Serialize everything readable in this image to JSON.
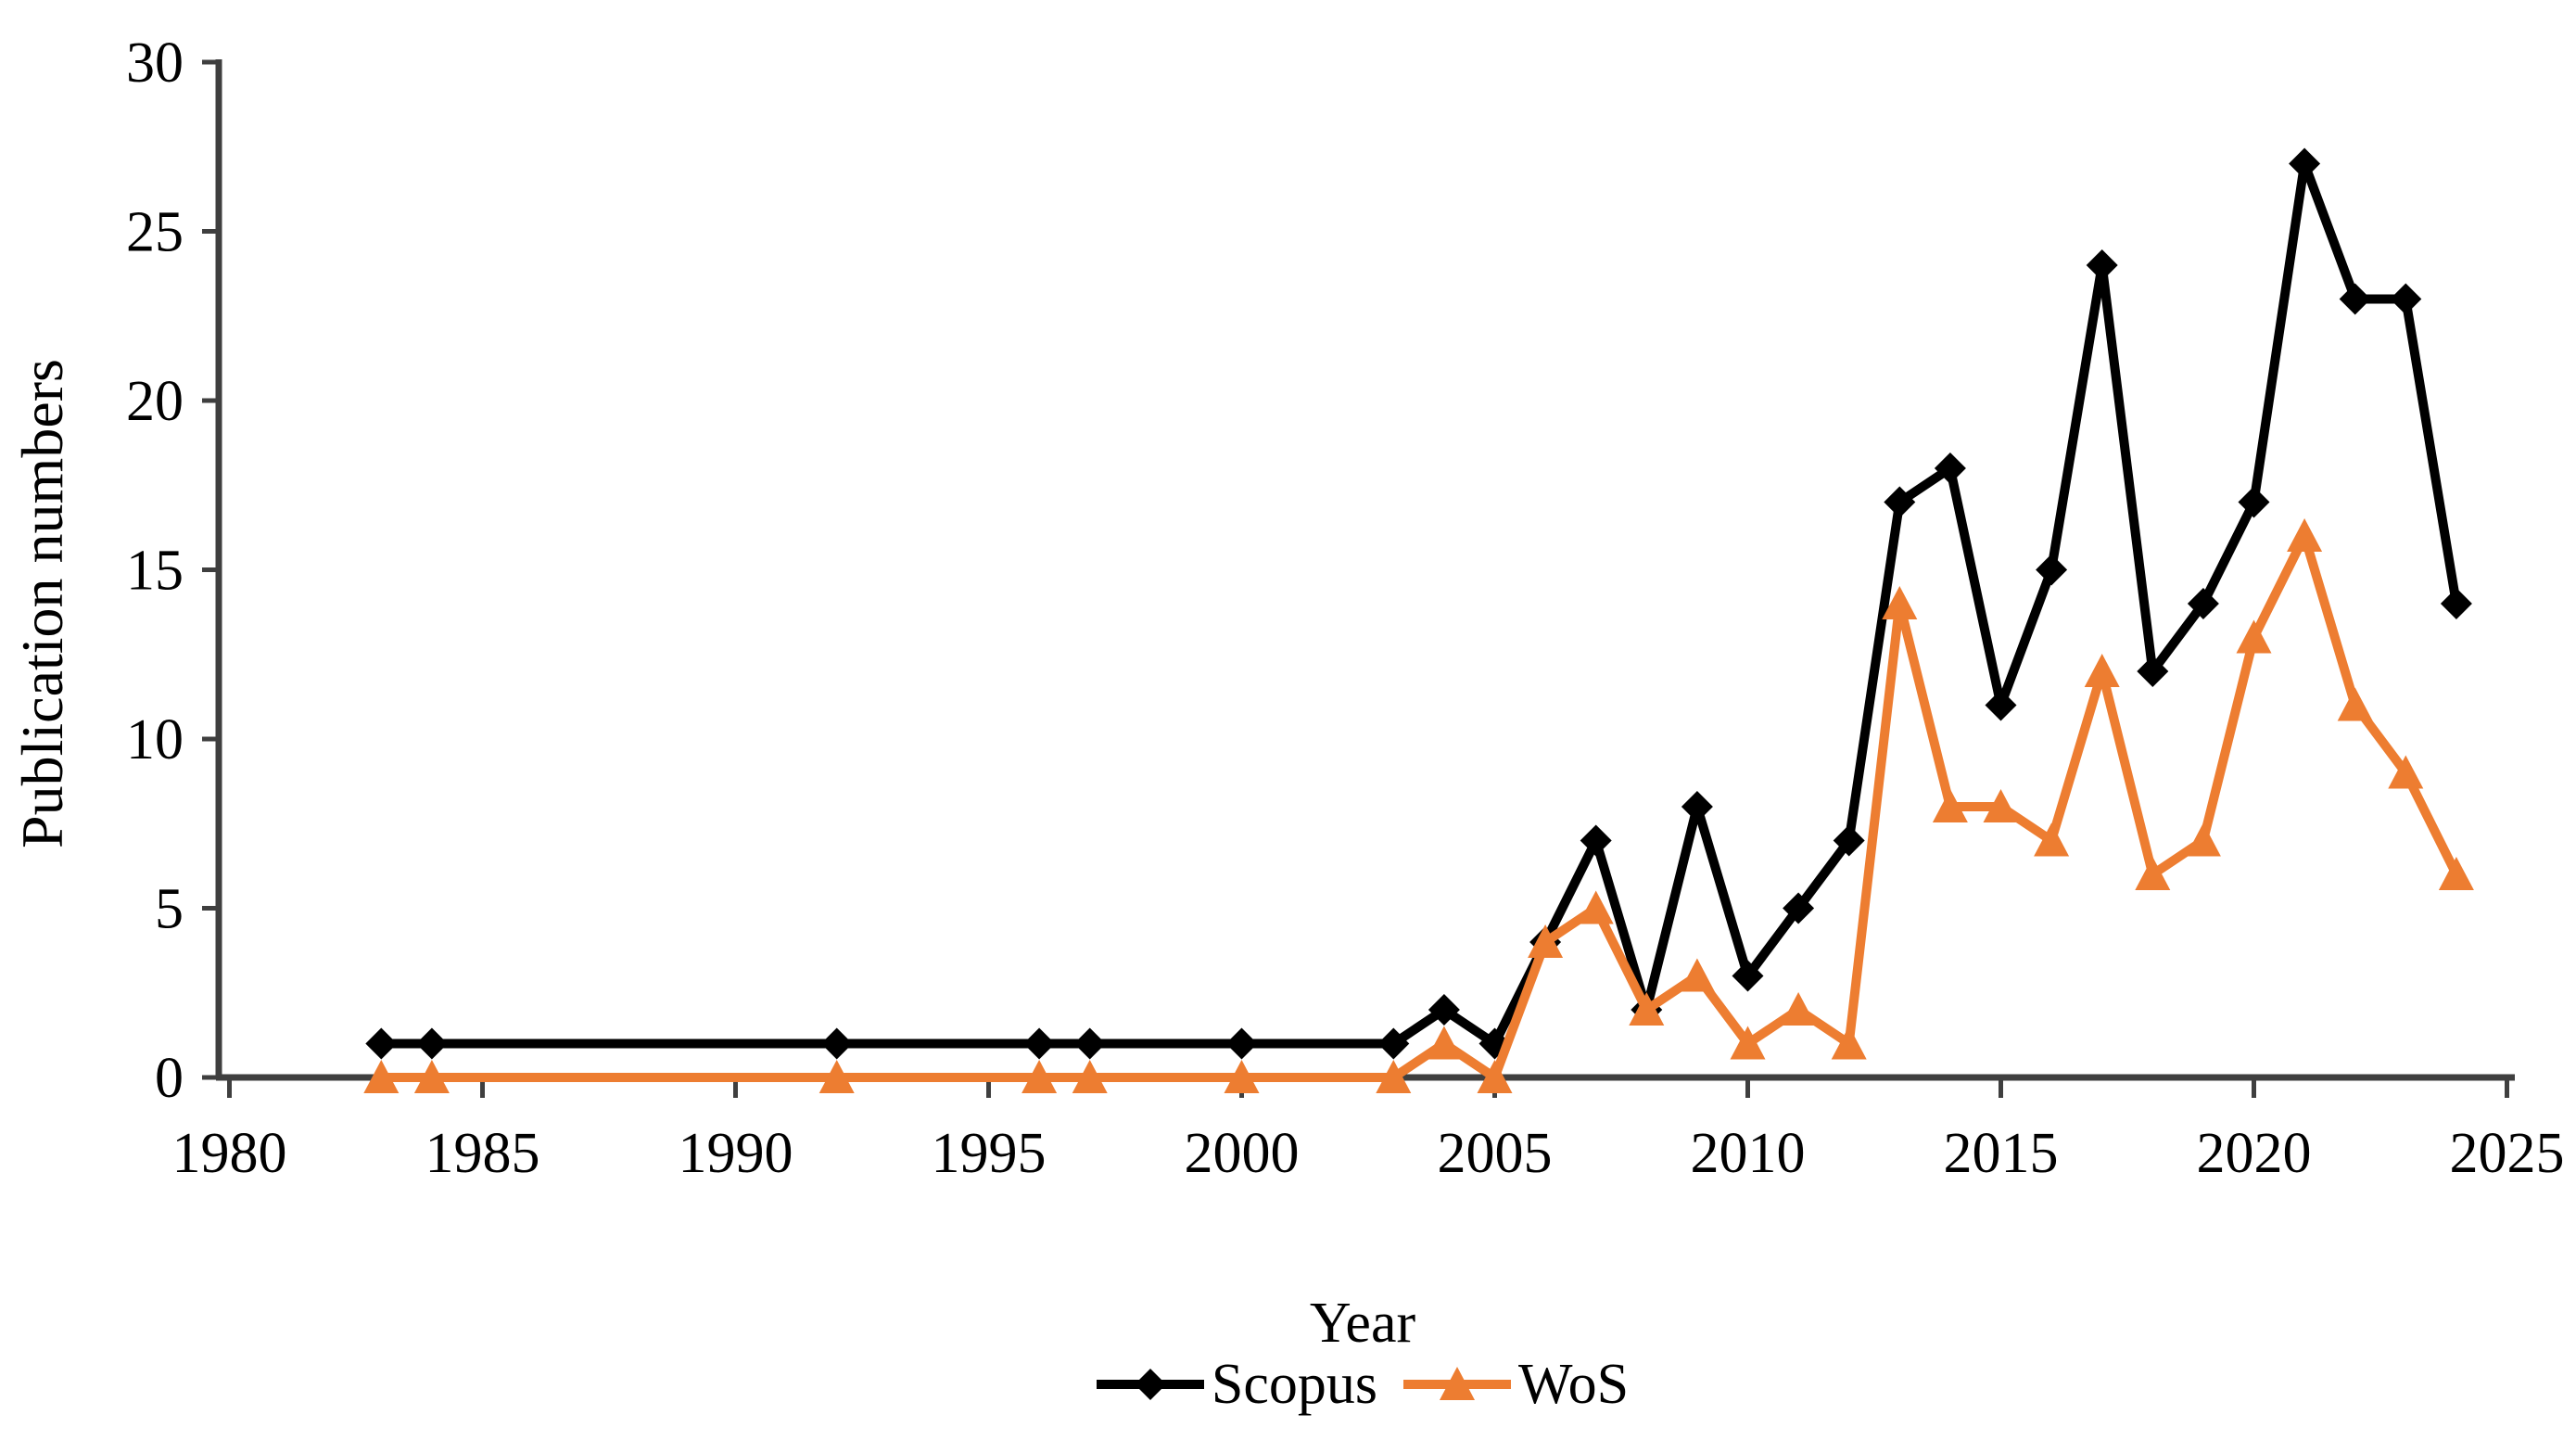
{
  "chart_data": {
    "type": "line",
    "title": "",
    "xlabel": "Year",
    "ylabel": "Publication numbers",
    "xlim": [
      1980,
      2025
    ],
    "ylim": [
      0,
      30
    ],
    "x_ticks": [
      1980,
      1985,
      1990,
      1995,
      2000,
      2005,
      2010,
      2015,
      2020,
      2025
    ],
    "y_ticks": [
      0,
      5,
      10,
      15,
      20,
      25,
      30
    ],
    "grid": false,
    "legend_position": "bottom-center",
    "x": [
      1983,
      1984,
      1992,
      1996,
      1997,
      2000,
      2003,
      2004,
      2005,
      2006,
      2007,
      2008,
      2009,
      2010,
      2011,
      2012,
      2013,
      2014,
      2015,
      2016,
      2017,
      2018,
      2019,
      2020,
      2021,
      2022,
      2023,
      2024
    ],
    "series": [
      {
        "name": "Scopus",
        "marker": "diamond",
        "color": "#000000",
        "values": [
          1,
          1,
          1,
          1,
          1,
          1,
          1,
          2,
          1,
          4,
          7,
          2,
          8,
          3,
          5,
          7,
          17,
          18,
          11,
          15,
          24,
          12,
          14,
          17,
          27,
          23,
          23,
          14
        ]
      },
      {
        "name": "WoS",
        "marker": "triangle",
        "color": "#ED7D31",
        "values": [
          0,
          0,
          0,
          0,
          0,
          0,
          0,
          1,
          0,
          4,
          5,
          2,
          3,
          1,
          2,
          1,
          14,
          8,
          8,
          7,
          12,
          6,
          7,
          13,
          16,
          11,
          9,
          6
        ]
      }
    ]
  },
  "colors": {
    "axis": "#3F3F3F",
    "text": "#000000",
    "background": "#FFFFFF"
  }
}
